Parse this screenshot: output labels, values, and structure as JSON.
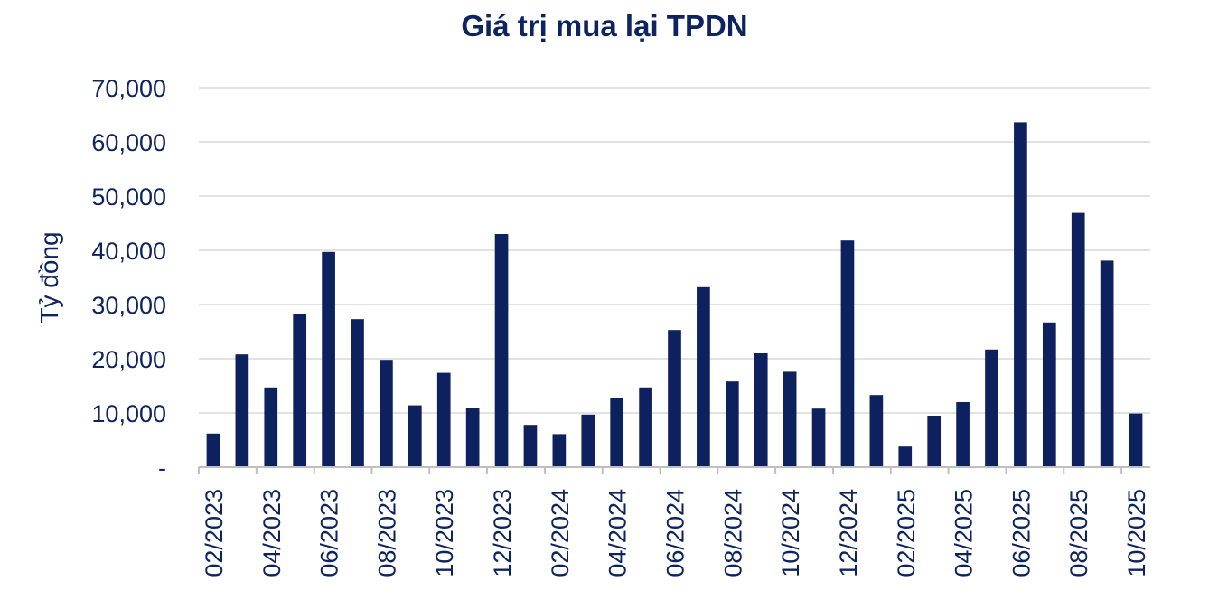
{
  "chart_data": {
    "type": "bar",
    "title": "Giá trị mua lại TPDN",
    "ylabel": "Tỷ đồng",
    "xlabel": "",
    "ylim": [
      0,
      70000
    ],
    "yticks": [
      {
        "value": 0,
        "label": "-"
      },
      {
        "value": 10000,
        "label": "10,000"
      },
      {
        "value": 20000,
        "label": "20,000"
      },
      {
        "value": 30000,
        "label": "30,000"
      },
      {
        "value": 40000,
        "label": "40,000"
      },
      {
        "value": 50000,
        "label": "50,000"
      },
      {
        "value": 60000,
        "label": "60,000"
      },
      {
        "value": 70000,
        "label": "70,000"
      }
    ],
    "grid": true,
    "categories": [
      "02/2023",
      "03/2023",
      "04/2023",
      "05/2023",
      "06/2023",
      "07/2023",
      "08/2023",
      "09/2023",
      "10/2023",
      "11/2023",
      "12/2023",
      "01/2024",
      "02/2024",
      "03/2024",
      "04/2024",
      "05/2024",
      "06/2024",
      "07/2024",
      "08/2024",
      "09/2024",
      "10/2024",
      "11/2024",
      "12/2024",
      "01/2025",
      "02/2025",
      "03/2025",
      "04/2025",
      "05/2025",
      "06/2025",
      "07/2025",
      "08/2025",
      "09/2025",
      "10/2025"
    ],
    "tick_labels": [
      "02/2023",
      "04/2023",
      "06/2023",
      "08/2023",
      "10/2023",
      "12/2023",
      "02/2024",
      "04/2024",
      "06/2024",
      "08/2024",
      "10/2024",
      "12/2024",
      "02/2025",
      "04/2025",
      "06/2025",
      "08/2025",
      "10/2025"
    ],
    "values": [
      6200,
      20800,
      14700,
      28200,
      39700,
      27300,
      19800,
      11400,
      17400,
      10900,
      43000,
      7800,
      6100,
      9700,
      12700,
      14700,
      25300,
      33200,
      15800,
      21000,
      17600,
      10800,
      41800,
      13300,
      3800,
      9500,
      12000,
      21700,
      63600,
      26700,
      46900,
      38100,
      9900
    ],
    "colors": {
      "bar": "#0c215e",
      "text": "#0d2461",
      "grid": "#d9d9d9",
      "axis": "#bfbfbf"
    }
  }
}
